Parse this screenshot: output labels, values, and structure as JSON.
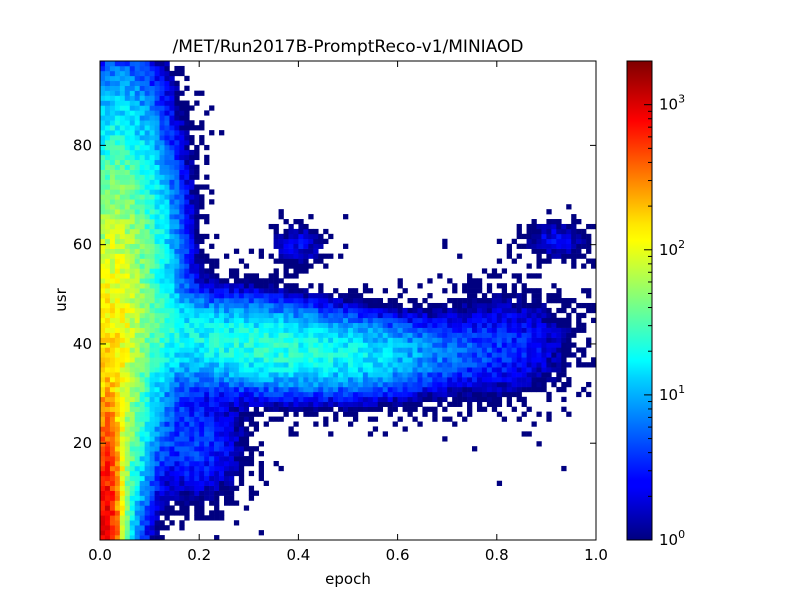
{
  "chart_data": {
    "type": "heatmap",
    "title": "/MET/Run2017B-PromptReco-v1/MINIAOD",
    "xlabel": "epoch",
    "ylabel": "usr",
    "xlim": [
      0.0,
      1.0
    ],
    "ylim": [
      0.5,
      97
    ],
    "x_ticks": [
      0.0,
      0.2,
      0.4,
      0.6,
      0.8,
      1.0
    ],
    "x_tick_labels": [
      "0.0",
      "0.2",
      "0.4",
      "0.6",
      "0.8",
      "1.0"
    ],
    "y_ticks": [
      20,
      40,
      60,
      80
    ],
    "y_tick_labels": [
      "20",
      "40",
      "60",
      "80"
    ],
    "grid": false,
    "colormap": "jet",
    "color_scale": "log",
    "color_range": [
      1,
      2000
    ],
    "colorbar": {
      "ticks": [
        1,
        10,
        100,
        1000
      ],
      "tick_labels": [
        {
          "base": "10",
          "exp": "0"
        },
        {
          "base": "10",
          "exp": "1"
        },
        {
          "base": "10",
          "exp": "2"
        },
        {
          "base": "10",
          "exp": "3"
        }
      ]
    },
    "regions": [
      {
        "x": [
          0.0,
          0.03
        ],
        "y": [
          0,
          25
        ],
        "count": 900
      },
      {
        "x": [
          0.0,
          0.05
        ],
        "y": [
          0,
          20
        ],
        "count": 350
      },
      {
        "x": [
          0.0,
          0.06
        ],
        "y": [
          20,
          50
        ],
        "count": 150
      },
      {
        "x": [
          0.0,
          0.15
        ],
        "y": [
          10,
          80
        ],
        "count": 50
      },
      {
        "x": [
          0.0,
          0.1
        ],
        "y": [
          80,
          97
        ],
        "count": 2
      },
      {
        "x": [
          0.15,
          0.5
        ],
        "y": [
          25,
          50
        ],
        "count": 15
      },
      {
        "x": [
          0.5,
          0.75
        ],
        "y": [
          30,
          48
        ],
        "count": 6
      },
      {
        "x": [
          0.75,
          0.95
        ],
        "y": [
          28,
          50
        ],
        "count": 2
      },
      {
        "x": [
          0.35,
          0.45
        ],
        "y": [
          55,
          65
        ],
        "count": 2
      },
      {
        "x": [
          0.84,
          1.0
        ],
        "y": [
          55,
          65
        ],
        "count": 2
      }
    ]
  }
}
